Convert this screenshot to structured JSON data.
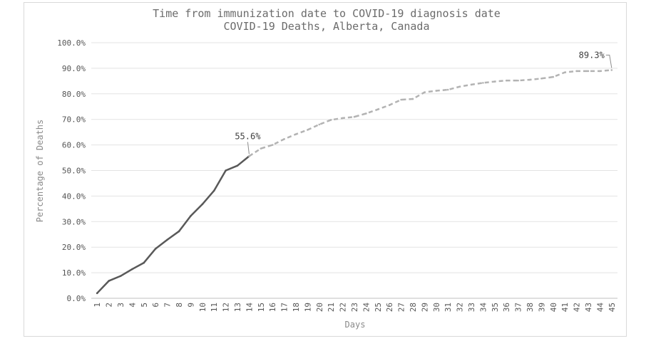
{
  "chart_data": {
    "type": "line",
    "title": "Time from immunization date to COVID-19 diagnosis date",
    "subtitle": "COVID-19 Deaths, Alberta, Canada",
    "xlabel": "Days",
    "ylabel": "Percentage of Deaths",
    "x": [
      1,
      2,
      3,
      4,
      5,
      6,
      7,
      8,
      9,
      10,
      11,
      12,
      13,
      14,
      15,
      16,
      17,
      18,
      19,
      20,
      21,
      22,
      23,
      24,
      25,
      26,
      27,
      28,
      29,
      30,
      31,
      32,
      33,
      34,
      35,
      36,
      37,
      38,
      39,
      40,
      41,
      42,
      43,
      44,
      45
    ],
    "y_ticks": [
      "0.0%",
      "10.0%",
      "20.0%",
      "30.0%",
      "40.0%",
      "50.0%",
      "60.0%",
      "70.0%",
      "80.0%",
      "90.0%",
      "100.0%"
    ],
    "ylim": [
      0,
      100
    ],
    "grid": "horizontal",
    "series": [
      {
        "style": "solid",
        "color": "#595959",
        "x": [
          1,
          2,
          3,
          4,
          5,
          6,
          7,
          8,
          9,
          10,
          11,
          12,
          13,
          14
        ],
        "values": [
          2.0,
          6.8,
          8.7,
          11.4,
          13.9,
          19.4,
          22.9,
          26.2,
          32.2,
          36.8,
          42.1,
          50.0,
          51.9,
          55.6
        ]
      },
      {
        "style": "dashed",
        "color": "#b3b3b3",
        "x": [
          14,
          15,
          16,
          17,
          18,
          19,
          20,
          21,
          22,
          23,
          24,
          25,
          26,
          27,
          28,
          29,
          30,
          31,
          32,
          33,
          34,
          35,
          36,
          37,
          38,
          39,
          40,
          41,
          42,
          43,
          44,
          45
        ],
        "values": [
          55.6,
          58.6,
          60.0,
          62.3,
          64.2,
          65.9,
          68.0,
          69.8,
          70.5,
          71.0,
          72.3,
          73.9,
          75.6,
          77.7,
          78.0,
          80.6,
          81.2,
          81.6,
          82.8,
          83.6,
          84.3,
          84.8,
          85.2,
          85.2,
          85.5,
          86.0,
          86.6,
          88.4,
          88.9,
          88.9,
          88.9,
          89.3
        ]
      }
    ],
    "annotations": [
      {
        "label": "55.6%",
        "x": 14,
        "y": 55.6
      },
      {
        "label": "89.3%",
        "x": 45,
        "y": 89.3
      }
    ]
  }
}
